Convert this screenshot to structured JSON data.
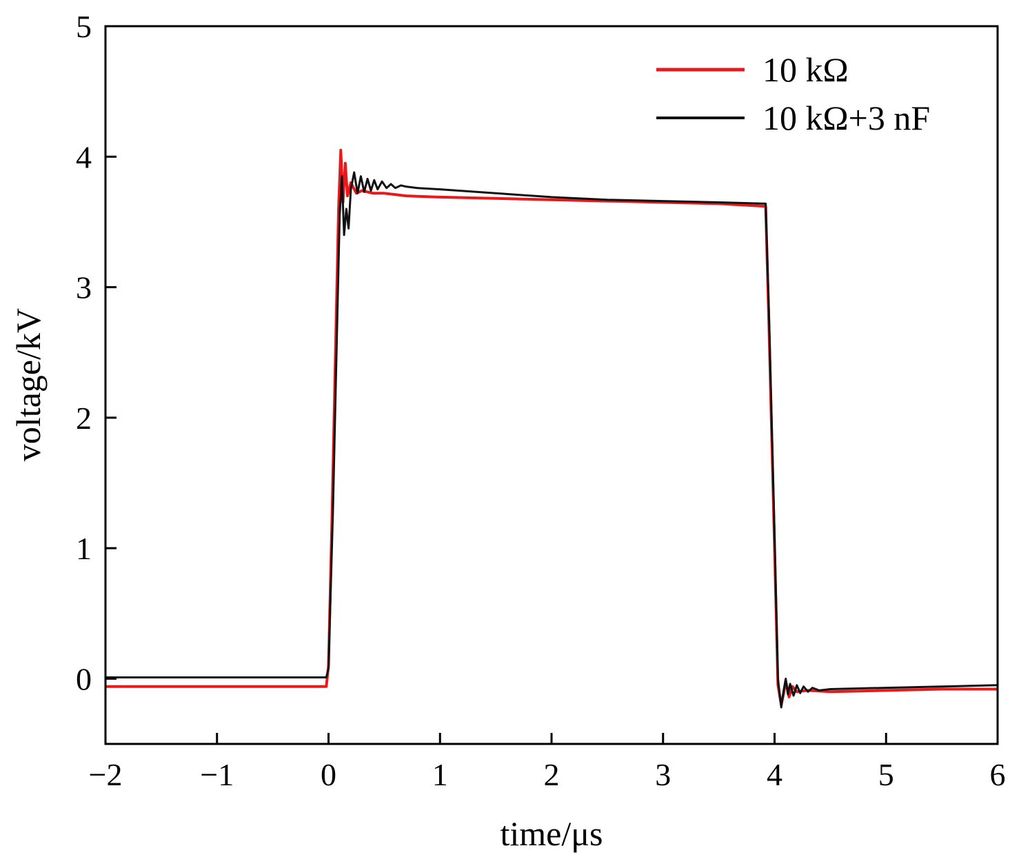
{
  "chart_data": {
    "type": "line",
    "xlabel": "time/μs",
    "ylabel": "voltage/kV",
    "xlim": [
      -2,
      6
    ],
    "ylim": [
      -0.5,
      5
    ],
    "xticks": [
      -2,
      -1,
      0,
      1,
      2,
      3,
      4,
      5,
      6
    ],
    "xtick_labels": [
      "−2",
      "−1",
      "0",
      "1",
      "2",
      "3",
      "4",
      "5",
      "6"
    ],
    "yticks": [
      0,
      1,
      2,
      3,
      4,
      5
    ],
    "ytick_labels": [
      "0",
      "1",
      "2",
      "3",
      "4",
      "5"
    ],
    "grid": false,
    "legend_position": "top-right",
    "series": [
      {
        "name": "10 kΩ",
        "color": "#e8191c",
        "x": [
          -2.0,
          -0.02,
          0.0,
          0.03,
          0.06,
          0.09,
          0.11,
          0.13,
          0.15,
          0.17,
          0.2,
          0.25,
          0.3,
          0.4,
          0.5,
          0.7,
          1.0,
          1.5,
          2.0,
          2.5,
          3.0,
          3.5,
          3.92,
          3.95,
          4.0,
          4.03,
          4.06,
          4.08,
          4.1,
          4.13,
          4.16,
          4.2,
          4.3,
          4.5,
          5.0,
          5.5,
          6.0
        ],
        "y": [
          -0.06,
          -0.06,
          0.1,
          1.2,
          2.4,
          3.6,
          4.05,
          3.65,
          3.95,
          3.7,
          3.8,
          3.72,
          3.74,
          3.72,
          3.72,
          3.7,
          3.69,
          3.68,
          3.67,
          3.66,
          3.65,
          3.64,
          3.62,
          2.7,
          1.0,
          -0.05,
          -0.2,
          -0.12,
          -0.02,
          -0.14,
          -0.06,
          -0.1,
          -0.09,
          -0.1,
          -0.09,
          -0.08,
          -0.08
        ]
      },
      {
        "name": "10 kΩ+3 nF",
        "color": "#111111",
        "x": [
          -2.0,
          -0.02,
          0.0,
          0.04,
          0.08,
          0.1,
          0.12,
          0.14,
          0.16,
          0.18,
          0.2,
          0.23,
          0.26,
          0.29,
          0.32,
          0.35,
          0.38,
          0.41,
          0.44,
          0.48,
          0.52,
          0.56,
          0.6,
          0.65,
          0.7,
          0.8,
          1.0,
          1.5,
          2.0,
          2.5,
          3.0,
          3.5,
          3.92,
          3.95,
          4.0,
          4.03,
          4.06,
          4.08,
          4.1,
          4.12,
          4.14,
          4.17,
          4.2,
          4.23,
          4.26,
          4.3,
          4.34,
          4.4,
          4.5,
          5.0,
          5.5,
          6.0
        ],
        "y": [
          0.01,
          0.01,
          0.08,
          1.3,
          2.8,
          3.55,
          3.85,
          3.4,
          3.6,
          3.45,
          3.75,
          3.88,
          3.72,
          3.85,
          3.73,
          3.83,
          3.74,
          3.82,
          3.75,
          3.81,
          3.76,
          3.79,
          3.76,
          3.78,
          3.77,
          3.76,
          3.75,
          3.72,
          3.69,
          3.67,
          3.66,
          3.65,
          3.64,
          2.8,
          1.1,
          0.0,
          -0.22,
          -0.1,
          0.0,
          -0.12,
          -0.04,
          -0.13,
          -0.05,
          -0.11,
          -0.06,
          -0.1,
          -0.07,
          -0.09,
          -0.08,
          -0.07,
          -0.06,
          -0.05
        ]
      }
    ]
  }
}
